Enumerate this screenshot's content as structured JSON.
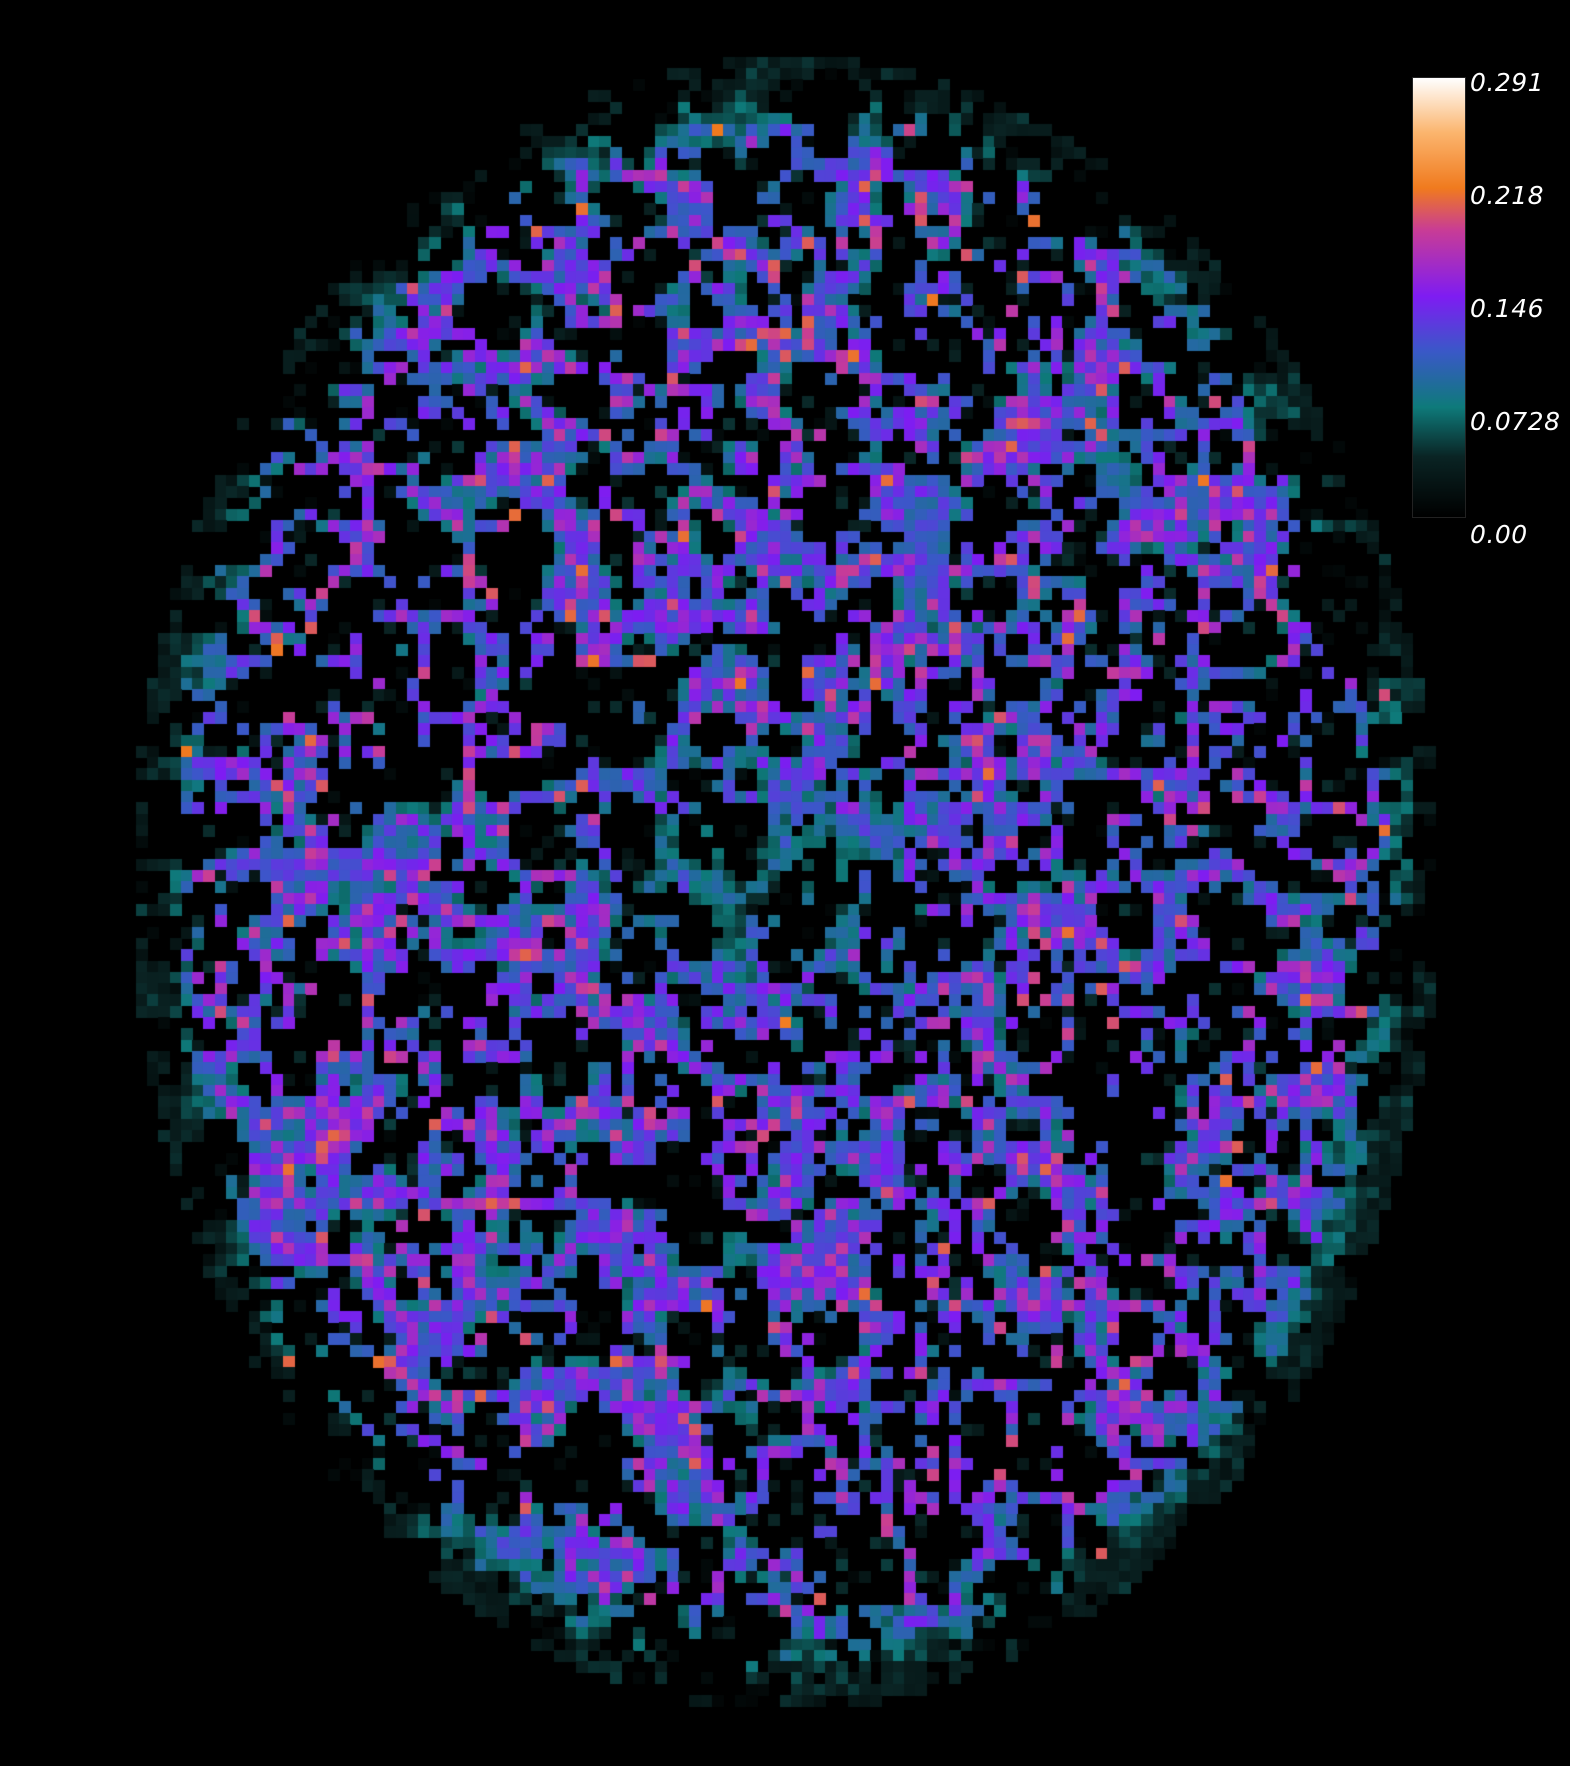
{
  "colorbar": {
    "max_label": "0.291",
    "tick_3_label": "0.218",
    "tick_2_label": "0.146",
    "tick_1_label": "0.0728",
    "min_label": "0.00",
    "value_range": [
      0.0,
      0.291
    ],
    "colormap_stops": [
      {
        "value": 0.0,
        "color": "#000000"
      },
      {
        "value": 0.04,
        "color": "#0a2424"
      },
      {
        "value": 0.0728,
        "color": "#0e7a7a"
      },
      {
        "value": 0.11,
        "color": "#3a58c8"
      },
      {
        "value": 0.146,
        "color": "#7e1cf2"
      },
      {
        "value": 0.19,
        "color": "#c83c96"
      },
      {
        "value": 0.218,
        "color": "#f07a1e"
      },
      {
        "value": 0.255,
        "color": "#fbb56e"
      },
      {
        "value": 0.291,
        "color": "#ffffff"
      }
    ]
  },
  "image": {
    "subject": "axial-brain-parametric-map",
    "background_color": "#000000"
  }
}
